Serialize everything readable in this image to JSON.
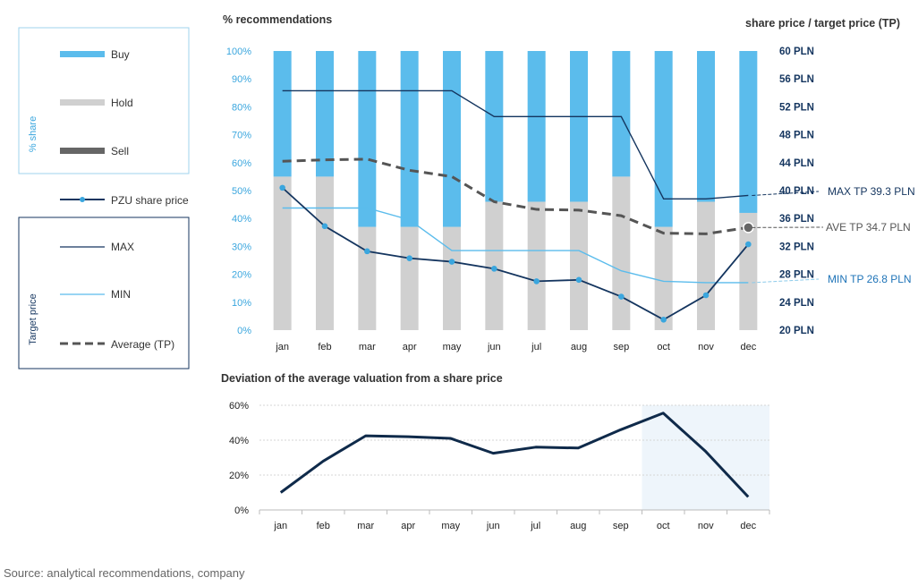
{
  "legend": {
    "share_axis_label": "% share",
    "target_axis_label": "Target price",
    "buy": "Buy",
    "hold": "Hold",
    "sell": "Sell",
    "pzu": "PZU share price",
    "max": "MAX",
    "min": "MIN",
    "avg": "Average (TP)"
  },
  "source": "Source: analytical recommendations, company",
  "colors": {
    "buy": "#5bbcec",
    "hold": "#d0d0d0",
    "sell": "#666666",
    "share_price": "#14355f",
    "share_price_marker": "#3aa6de",
    "max": "#14355f",
    "min": "#5bbcec",
    "avg": "#555555",
    "deviation_line": "#0f2a4a",
    "highlight": "#eef5fb"
  },
  "chart_data": [
    {
      "type": "bar",
      "title": "% recommendations",
      "right_axis_title": "share price / target price (TP)",
      "categories": [
        "jan",
        "feb",
        "mar",
        "apr",
        "may",
        "jun",
        "jul",
        "aug",
        "sep",
        "oct",
        "nov",
        "dec"
      ],
      "ylim": [
        0,
        100
      ],
      "yticks": [
        "0%",
        "10%",
        "20%",
        "30%",
        "40%",
        "50%",
        "60%",
        "70%",
        "80%",
        "90%",
        "100%"
      ],
      "y2lim": [
        20,
        60
      ],
      "y2ticks": [
        "20 PLN",
        "24 PLN",
        "28 PLN",
        "32 PLN",
        "36 PLN",
        "40 PLN",
        "44 PLN",
        "48 PLN",
        "52 PLN",
        "56 PLN",
        "60 PLN"
      ],
      "series": [
        {
          "name": "Buy",
          "values": [
            45,
            45,
            63,
            63,
            63,
            54,
            54,
            54,
            45,
            63,
            54,
            58
          ]
        },
        {
          "name": "Hold",
          "values": [
            55,
            55,
            37,
            37,
            37,
            46,
            46,
            46,
            55,
            37,
            46,
            42
          ]
        },
        {
          "name": "Sell",
          "values": [
            0,
            0,
            0,
            0,
            0,
            0,
            0,
            0,
            0,
            0,
            0,
            0
          ]
        },
        {
          "name": "PZU share price",
          "axis": "right",
          "values": [
            40.4,
            34.9,
            31.3,
            30.3,
            29.8,
            28.8,
            27.0,
            27.2,
            24.8,
            21.5,
            25.0,
            32.3
          ]
        },
        {
          "name": "MAX",
          "axis": "right",
          "values": [
            54.3,
            54.3,
            54.3,
            54.3,
            54.3,
            50.6,
            50.6,
            50.6,
            50.6,
            38.8,
            38.8,
            39.3
          ]
        },
        {
          "name": "MIN",
          "axis": "right",
          "values": [
            37.5,
            37.5,
            37.5,
            35.8,
            31.4,
            31.4,
            31.4,
            31.4,
            28.5,
            27.0,
            26.8,
            26.8
          ]
        },
        {
          "name": "Average (TP)",
          "axis": "right",
          "values": [
            44.2,
            44.4,
            44.5,
            42.9,
            42.0,
            38.4,
            37.3,
            37.2,
            36.4,
            33.9,
            33.8,
            34.7
          ]
        }
      ],
      "annotations": [
        {
          "text": "MAX TP 39.3 PLN",
          "value": 39.3
        },
        {
          "text": "AVE TP 34.7 PLN",
          "value": 34.7
        },
        {
          "text": "MIN TP 26.8 PLN",
          "value": 26.8
        }
      ]
    },
    {
      "type": "line",
      "title": "Deviation of the average valuation from a share price",
      "categories": [
        "jan",
        "feb",
        "mar",
        "apr",
        "may",
        "jun",
        "jul",
        "aug",
        "sep",
        "oct",
        "nov",
        "dec"
      ],
      "ylim": [
        0,
        60
      ],
      "yticks": [
        "0%",
        "20%",
        "40%",
        "60%"
      ],
      "series": [
        {
          "values": [
            10,
            28,
            42.5,
            42,
            41,
            32.5,
            36,
            35.5,
            46,
            55.5,
            33.5,
            7.5
          ]
        }
      ],
      "highlight_range": [
        "oct",
        "dec"
      ]
    }
  ]
}
